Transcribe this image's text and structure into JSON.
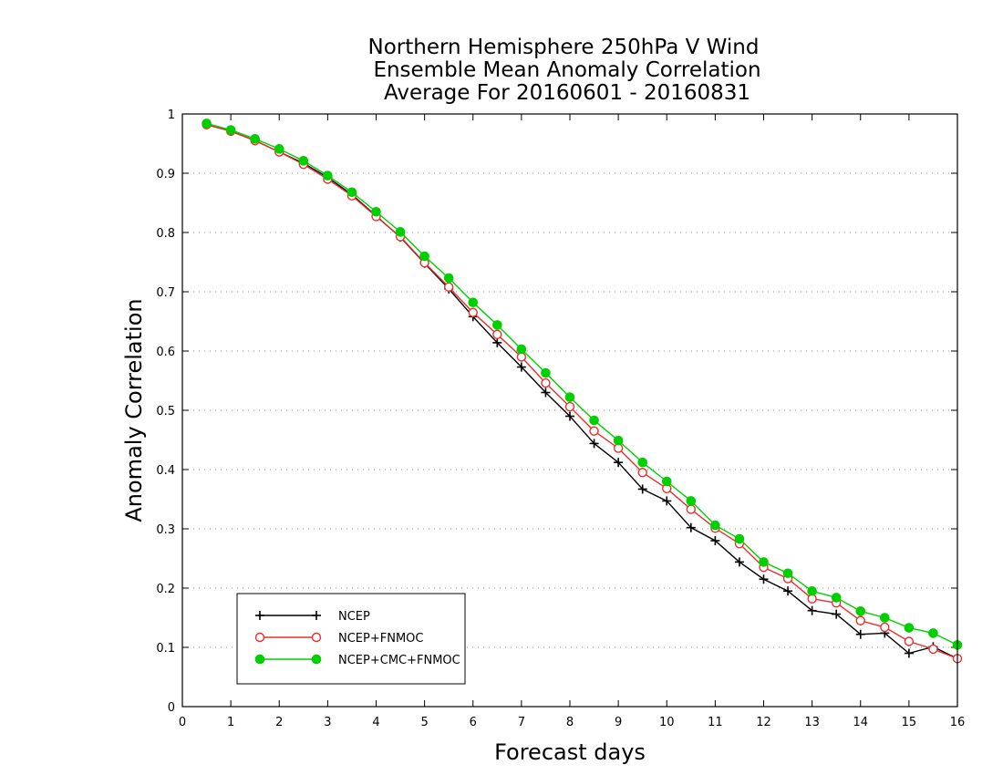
{
  "chart_data": {
    "type": "line",
    "title": [
      "Northern Hemisphere 250hPa V Wind",
      "Ensemble Mean Anomaly Correlation",
      "Average For 20160601 - 20160831"
    ],
    "xlabel": "Forecast days",
    "ylabel": "Anomaly Correlation",
    "xlim": [
      0,
      16
    ],
    "ylim": [
      0,
      1
    ],
    "xticks": [
      "0",
      "1",
      "2",
      "3",
      "4",
      "5",
      "6",
      "7",
      "8",
      "9",
      "10",
      "11",
      "12",
      "13",
      "14",
      "15",
      "16"
    ],
    "yticks": [
      "0",
      "0.1",
      "0.2",
      "0.3",
      "0.4",
      "0.5",
      "0.6",
      "0.7",
      "0.8",
      "0.9",
      "1"
    ],
    "grid": "horizontal-dotted",
    "legend": "bottom-left",
    "x": [
      0.5,
      1,
      1.5,
      2,
      2.5,
      3,
      3.5,
      4,
      4.5,
      5,
      5.5,
      6,
      6.5,
      7,
      7.5,
      8,
      8.5,
      9,
      9.5,
      10,
      10.5,
      11,
      11.5,
      12,
      12.5,
      13,
      13.5,
      14,
      14.5,
      15,
      15.5,
      16
    ],
    "series": [
      {
        "name": "NCEP",
        "color": "#000000",
        "marker": "plus",
        "values": [
          0.982,
          0.971,
          0.955,
          0.936,
          0.917,
          0.893,
          0.864,
          0.828,
          0.792,
          0.748,
          0.705,
          0.658,
          0.614,
          0.573,
          0.53,
          0.49,
          0.444,
          0.412,
          0.367,
          0.347,
          0.302,
          0.28,
          0.244,
          0.215,
          0.195,
          0.162,
          0.156,
          0.122,
          0.124,
          0.09,
          0.101,
          0.081
        ]
      },
      {
        "name": "NCEP+FNMOC",
        "color": "#e83030",
        "marker": "open-circle",
        "values": [
          0.982,
          0.971,
          0.955,
          0.936,
          0.915,
          0.89,
          0.862,
          0.827,
          0.793,
          0.749,
          0.708,
          0.665,
          0.628,
          0.59,
          0.546,
          0.506,
          0.465,
          0.436,
          0.395,
          0.368,
          0.333,
          0.301,
          0.275,
          0.235,
          0.216,
          0.182,
          0.175,
          0.145,
          0.134,
          0.11,
          0.097,
          0.081
        ]
      },
      {
        "name": "NCEP+CMC+FNMOC",
        "color": "#00d000",
        "marker": "filled-circle",
        "values": [
          0.984,
          0.973,
          0.958,
          0.941,
          0.921,
          0.896,
          0.868,
          0.835,
          0.801,
          0.76,
          0.723,
          0.682,
          0.644,
          0.603,
          0.563,
          0.522,
          0.483,
          0.449,
          0.412,
          0.38,
          0.347,
          0.306,
          0.283,
          0.244,
          0.225,
          0.195,
          0.184,
          0.161,
          0.15,
          0.133,
          0.124,
          0.104
        ]
      }
    ]
  }
}
